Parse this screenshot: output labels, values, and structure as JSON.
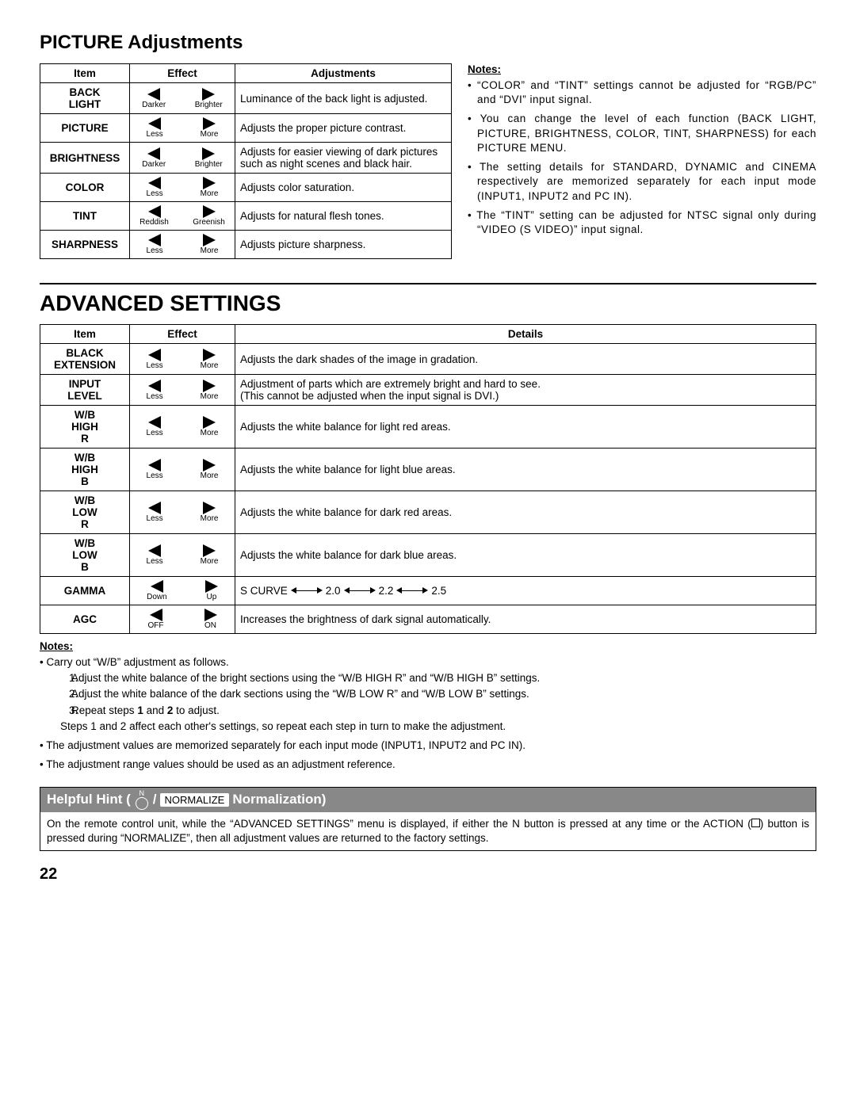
{
  "page_title": "PICTURE Adjustments",
  "table1": {
    "headers": {
      "item": "Item",
      "effect": "Effect",
      "adj": "Adjustments"
    },
    "rows": [
      {
        "item": "BACK LIGHT",
        "left": "Darker",
        "right": "Brighter",
        "adj": "Luminance of the back light is adjusted."
      },
      {
        "item": "PICTURE",
        "left": "Less",
        "right": "More",
        "adj": "Adjusts the proper picture contrast."
      },
      {
        "item": "BRIGHTNESS",
        "left": "Darker",
        "right": "Brighter",
        "adj": "Adjusts for easier viewing of dark pictures such as night scenes and black hair."
      },
      {
        "item": "COLOR",
        "left": "Less",
        "right": "More",
        "adj": "Adjusts color saturation."
      },
      {
        "item": "TINT",
        "left": "Reddish",
        "right": "Greenish",
        "adj": "Adjusts for natural flesh tones."
      },
      {
        "item": "SHARPNESS",
        "left": "Less",
        "right": "More",
        "adj": "Adjusts picture sharpness."
      }
    ]
  },
  "notes1": {
    "label": "Notes:",
    "items": [
      "“COLOR” and “TINT” settings cannot be adjusted for “RGB/PC” and “DVI” input signal.",
      "You can change the level of each function (BACK LIGHT, PICTURE, BRIGHTNESS, COLOR, TINT, SHARPNESS) for each PICTURE MENU.",
      "The setting details for STANDARD, DYNAMIC and CINEMA respectively are memorized separately for each input mode  (INPUT1, INPUT2 and PC IN).",
      "The “TINT” setting can be adjusted for NTSC signal only during “VIDEO (S VIDEO)” input signal."
    ]
  },
  "advanced_title": "ADVANCED SETTINGS",
  "table2": {
    "headers": {
      "item": "Item",
      "effect": "Effect",
      "adj": "Details"
    },
    "rows": [
      {
        "item": "BLACK EXTENSION",
        "left": "Less",
        "right": "More",
        "adj": "Adjusts the dark shades of the image in gradation."
      },
      {
        "item": "INPUT LEVEL",
        "left": "Less",
        "right": "More",
        "adj": "Adjustment of parts which are extremely bright and hard to see.\n(This cannot be adjusted when the input signal is DVI.)"
      },
      {
        "item": "W/B HIGH R",
        "left": "Less",
        "right": "More",
        "adj": "Adjusts the white balance for light red areas."
      },
      {
        "item": "W/B HIGH B",
        "left": "Less",
        "right": "More",
        "adj": "Adjusts the white balance for light blue areas."
      },
      {
        "item": "W/B LOW R",
        "left": "Less",
        "right": "More",
        "adj": "Adjusts the white balance for dark red areas."
      },
      {
        "item": "W/B LOW B",
        "left": "Less",
        "right": "More",
        "adj": "Adjusts the white balance for dark blue areas."
      },
      {
        "item": "GAMMA",
        "left": "Down",
        "right": "Up",
        "adj_type": "gamma",
        "gamma": [
          "S CURVE",
          "2.0",
          "2.2",
          "2.5"
        ]
      },
      {
        "item": "AGC",
        "left": "OFF",
        "right": "ON",
        "adj": "Increases the brightness of dark signal automatically."
      }
    ]
  },
  "notes2": {
    "label": "Notes:",
    "intro": "Carry out “W/B” adjustment as follows.",
    "steps": [
      "Adjust the white balance of the bright sections using the “W/B HIGH R” and “W/B HIGH B” settings.",
      "Adjust the white balance of the dark sections using the “W/B LOW R” and “W/B LOW B” settings.",
      "Repeat steps 1 and 2 to adjust."
    ],
    "after_steps": "Steps 1 and 2 affect each other's settings, so repeat each step in turn to make the adjustment.",
    "bullets": [
      "The adjustment values are memorized separately for each input mode (INPUT1, INPUT2 and PC IN).",
      "The adjustment range values should be used as an adjustment reference."
    ]
  },
  "hint": {
    "title_pre": "Helpful Hint (",
    "title_mid": " / ",
    "normalize_btn": "NORMALIZE",
    "title_post": " Normalization)",
    "body": "On the remote control unit, while the “ADVANCED SETTINGS” menu is displayed, if either the N button is pressed at any time or the ACTION (■) button is pressed during “NORMALIZE”, then all adjustment values are returned to the factory settings."
  },
  "page_number": "22"
}
